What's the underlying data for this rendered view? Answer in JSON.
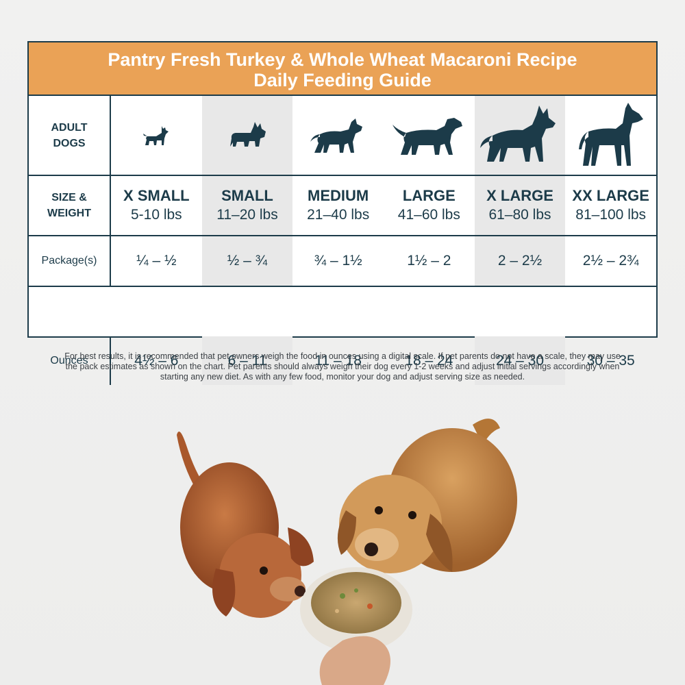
{
  "header": {
    "title_line1": "Pantry Fresh Turkey & Whole Wheat Macaroni Recipe",
    "title_line2": "Daily Feeding Guide"
  },
  "rows": {
    "dogs_label_line1": "ADULT",
    "dogs_label_line2": "DOGS",
    "size_label_line1": "SIZE &",
    "size_label_line2": "WEIGHT",
    "package_label": "Package(s)",
    "ounces_label": "Ounces"
  },
  "sizes": [
    {
      "name": "X SMALL",
      "weight": "5-10 lbs",
      "packages": "¼ – ½",
      "ounces": "4½ – 6",
      "icon": "chihuahua-icon"
    },
    {
      "name": "SMALL",
      "weight": "11–20 lbs",
      "packages": "½ – ¾",
      "ounces": "6 – 11",
      "icon": "french-bulldog-icon"
    },
    {
      "name": "MEDIUM",
      "weight": "21–40 lbs",
      "packages": "¾ – 1½",
      "ounces": "11 – 18",
      "icon": "pitbull-icon"
    },
    {
      "name": "LARGE",
      "weight": "41–60 lbs",
      "packages": "1½ – 2",
      "ounces": "18 – 24",
      "icon": "labrador-icon"
    },
    {
      "name": "X LARGE",
      "weight": "61–80 lbs",
      "packages": "2 – 2½",
      "ounces": "24 – 30",
      "icon": "german-shepherd-icon"
    },
    {
      "name": "XX LARGE",
      "weight": "81–100 lbs",
      "packages": "2½ – 2¾",
      "ounces": "30 – 35",
      "icon": "great-dane-icon"
    }
  ],
  "footnote": "For best results, it is recommended that pet owners weigh the food in ounces using a digital scale. If pet parents do not have a scale, they may use the pack estimates as shown on the chart. Pet parents should always weigh their dog every 1-2 weeks and adjust initial servings accordingly when starting any new diet. As with any few food, monitor your dog and adjust serving size as needed.",
  "colors": {
    "header_bg": "#eaa256",
    "navy": "#1c3b49",
    "shade": "#e8e8e8"
  }
}
